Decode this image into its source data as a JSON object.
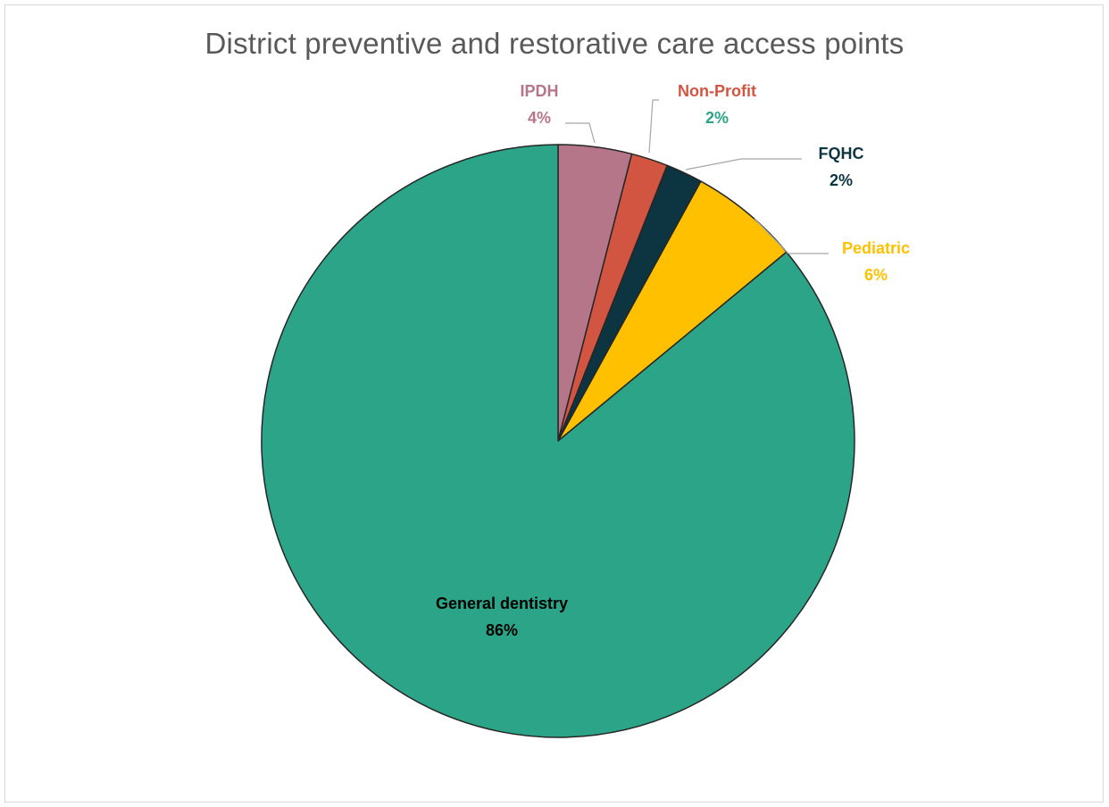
{
  "chart_data": {
    "type": "pie",
    "title": "District preventive and restorative care access points",
    "slices": [
      {
        "label": "IPDH",
        "value": 4,
        "display": "4%",
        "color": "#b5768a",
        "label_color": "#b5768a",
        "value_color": "#b5768a"
      },
      {
        "label": "Non-Profit",
        "value": 2,
        "display": "2%",
        "color": "#d25542",
        "label_color": "#d25542",
        "value_color": "#2ca487"
      },
      {
        "label": "FQHC",
        "value": 2,
        "display": "2%",
        "color": "#0d3441",
        "label_color": "#0d3441",
        "value_color": "#0d3441"
      },
      {
        "label": "Pediatric",
        "value": 6,
        "display": "6%",
        "color": "#ffc000",
        "label_color": "#ffc000",
        "value_color": "#ffc000"
      },
      {
        "label": "General dentistry",
        "value": 86,
        "display": "86%",
        "color": "#2ca487",
        "label_color": "#000000",
        "value_color": "#000000"
      }
    ],
    "start_angle": "12 o'clock",
    "direction": "clockwise",
    "legend": "none",
    "slice_border_color": "#262626"
  }
}
